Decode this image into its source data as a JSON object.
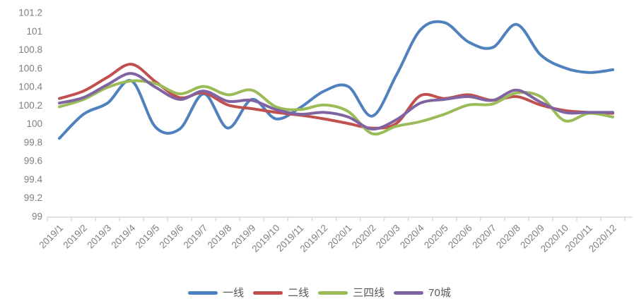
{
  "chart_data": {
    "type": "line",
    "title": "",
    "categories": [
      "2019/1",
      "2019/2",
      "2019/3",
      "2019/4",
      "2019/5",
      "2019/6",
      "2019/7",
      "2019/8",
      "2019/9",
      "2019/10",
      "2019/11",
      "2019/12",
      "2020/1",
      "2020/2",
      "2020/3",
      "2020/4",
      "2020/5",
      "2020/6",
      "2020/7",
      "2020/8",
      "2020/9",
      "2020/10",
      "2020/11",
      "2020/12"
    ],
    "series": [
      {
        "name": "一线",
        "color": "#4E81BD",
        "values": [
          99.84,
          100.1,
          100.22,
          100.46,
          99.96,
          99.94,
          100.32,
          99.95,
          100.26,
          100.05,
          100.17,
          100.35,
          100.4,
          100.08,
          100.52,
          101.01,
          101.09,
          100.88,
          100.82,
          101.07,
          100.74,
          100.6,
          100.55,
          100.58
        ]
      },
      {
        "name": "二线",
        "color": "#C0504D",
        "values": [
          100.27,
          100.35,
          100.5,
          100.64,
          100.45,
          100.28,
          100.33,
          100.2,
          100.16,
          100.12,
          100.09,
          100.05,
          100.0,
          99.95,
          100.0,
          100.3,
          100.27,
          100.31,
          100.25,
          100.29,
          100.2,
          100.14,
          100.12,
          100.11
        ]
      },
      {
        "name": "三四线",
        "color": "#9BBB59",
        "values": [
          100.18,
          100.26,
          100.39,
          100.46,
          100.43,
          100.32,
          100.4,
          100.31,
          100.36,
          100.18,
          100.15,
          100.2,
          100.13,
          99.89,
          99.97,
          100.02,
          100.1,
          100.2,
          100.21,
          100.33,
          100.29,
          100.03,
          100.11,
          100.07
        ]
      },
      {
        "name": "70城",
        "color": "#8064A2",
        "values": [
          100.22,
          100.28,
          100.42,
          100.54,
          100.39,
          100.26,
          100.35,
          100.24,
          100.25,
          100.15,
          100.1,
          100.12,
          100.07,
          99.94,
          100.04,
          100.22,
          100.26,
          100.29,
          100.25,
          100.36,
          100.23,
          100.12,
          100.12,
          100.12
        ]
      }
    ],
    "y_axis": {
      "min": 99,
      "max": 101.2,
      "step": 0.2,
      "tick_labels": [
        "99",
        "99.2",
        "99.4",
        "99.6",
        "99.8",
        "100",
        "100.2",
        "100.4",
        "100.6",
        "100.8",
        "101",
        "101.2"
      ]
    },
    "x_axis": {
      "label_rotation_deg": 45
    },
    "legend_position": "bottom",
    "grid": false,
    "style": {
      "axis_color": "#d9d9d9",
      "tick_label_color": "#7f7f7f",
      "legend_text_color": "#595959",
      "background": "#ffffff"
    }
  }
}
